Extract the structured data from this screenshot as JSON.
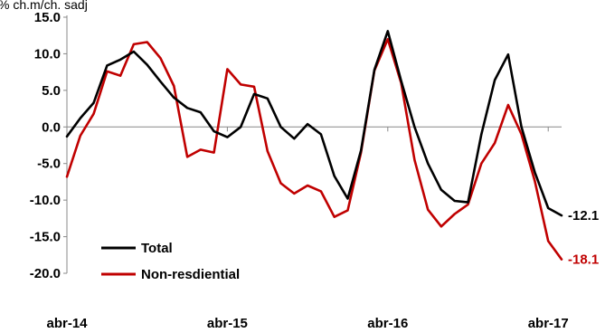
{
  "chart_data": {
    "type": "line",
    "ylabel": "% ch.m/ch. sadj",
    "ylim": [
      -20,
      15
    ],
    "yticks": [
      "15.0",
      "10.0",
      "5.0",
      "0.0",
      "-5.0",
      "-10.0",
      "-15.0",
      "-20.0"
    ],
    "ytick_values": [
      15,
      10,
      5,
      0,
      -5,
      -10,
      -15,
      -20
    ],
    "xtick_labels": [
      "abr-14",
      "abr-15",
      "abr-16",
      "abr-17"
    ],
    "xtick_positions": [
      0,
      12,
      24,
      36
    ],
    "grid": false,
    "legend_position": "bottom-left",
    "series": [
      {
        "name": "Total",
        "color": "#000000",
        "end_label": "-12.1",
        "values": [
          -1.3,
          1.2,
          3.3,
          8.4,
          9.2,
          10.3,
          8.5,
          6.2,
          4.0,
          2.6,
          2.0,
          -0.6,
          -1.4,
          0.0,
          4.5,
          3.9,
          0.0,
          -1.6,
          0.4,
          -1.0,
          -6.7,
          -9.8,
          -3.2,
          7.8,
          13.1,
          6.3,
          0.0,
          -5.0,
          -8.6,
          -10.1,
          -10.3,
          -1.0,
          6.4,
          9.9,
          0.0,
          -6.2,
          -11.1,
          -12.1
        ]
      },
      {
        "name": "Non-resdiential",
        "color": "#c00000",
        "end_label": "-18.1",
        "values": [
          -6.8,
          -1.2,
          1.8,
          7.6,
          7.0,
          11.3,
          11.6,
          9.4,
          5.6,
          -4.1,
          -3.1,
          -3.5,
          7.9,
          5.8,
          5.5,
          -3.3,
          -7.7,
          -9.1,
          -8.0,
          -8.8,
          -12.3,
          -11.4,
          -3.5,
          7.7,
          12.0,
          6.0,
          -4.5,
          -11.3,
          -13.6,
          -11.9,
          -10.6,
          -5.0,
          -2.2,
          3.0,
          -1.0,
          -7.4,
          -15.6,
          -18.1
        ]
      }
    ]
  }
}
